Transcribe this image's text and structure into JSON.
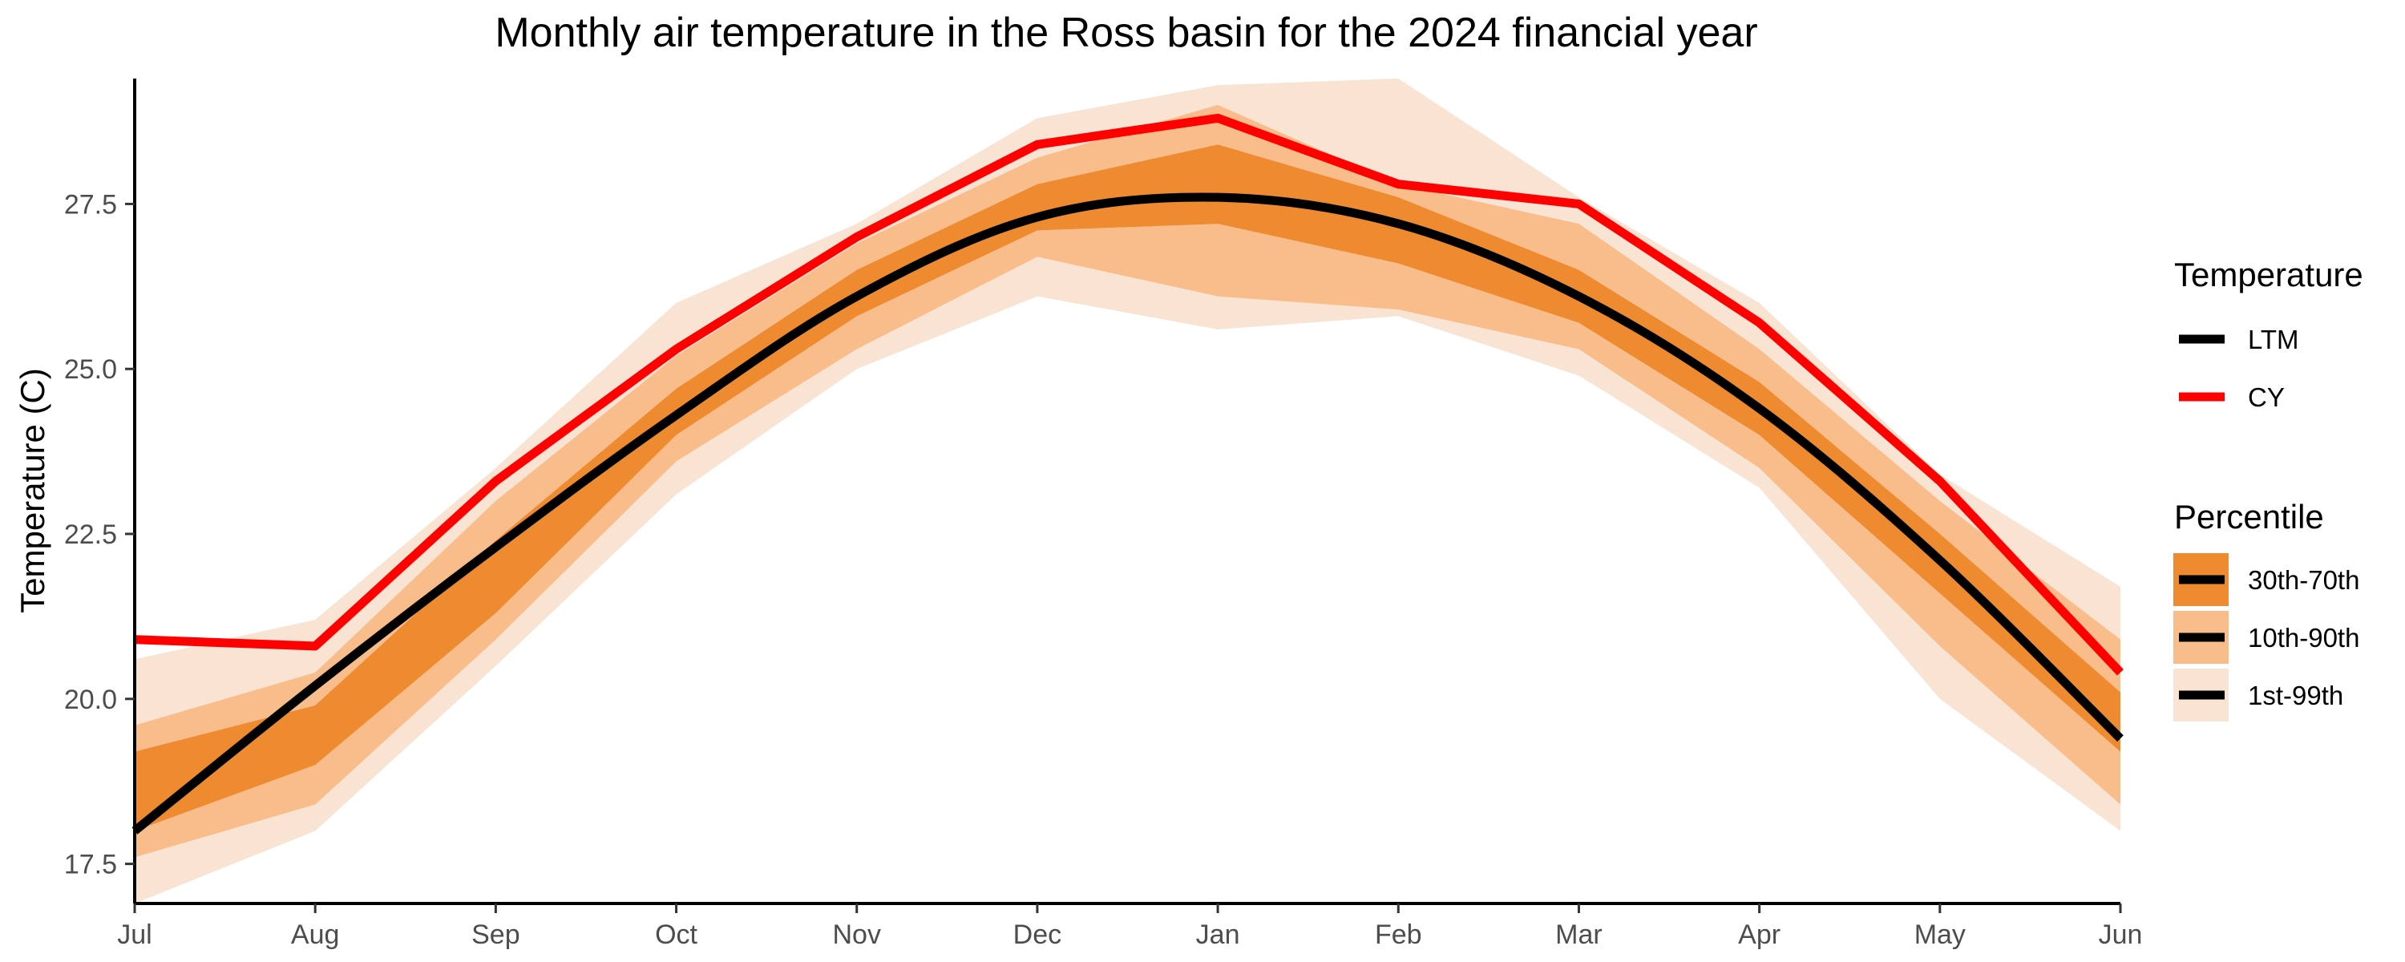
{
  "chart_data": {
    "type": "area",
    "title": "Monthly air temperature in the Ross basin for the 2024 financial year",
    "xlabel": "",
    "ylabel": "Temperature (C)",
    "categories": [
      "Jul",
      "Aug",
      "Sep",
      "Oct",
      "Nov",
      "Dec",
      "Jan",
      "Feb",
      "Mar",
      "Apr",
      "May",
      "Jun"
    ],
    "ylim": [
      16.9,
      29.4
    ],
    "yticks": [
      17.5,
      20.0,
      22.5,
      25.0,
      27.5
    ],
    "ytick_labels": [
      "17.5",
      "20.0",
      "22.5",
      "25.0",
      "27.5"
    ],
    "grid": false,
    "legend_position": "right",
    "series": [
      {
        "name": "LTM",
        "group": "Temperature",
        "color": "#000000",
        "values": [
          18.0,
          20.2,
          22.3,
          24.3,
          26.1,
          27.3,
          27.6,
          27.2,
          26.1,
          24.4,
          22.1,
          19.4
        ]
      },
      {
        "name": "CY",
        "group": "Temperature",
        "color": "#ff0000",
        "values": [
          20.9,
          20.8,
          23.3,
          25.3,
          27.0,
          28.4,
          28.8,
          27.8,
          27.5,
          25.7,
          23.3,
          20.4
        ]
      }
    ],
    "bands": [
      {
        "name": "1st-99th",
        "group": "Percentile",
        "color": "#f9e3d2",
        "lower": [
          16.9,
          18.0,
          20.5,
          23.1,
          25.0,
          26.1,
          25.6,
          25.8,
          24.9,
          23.2,
          20.0,
          18.0
        ],
        "upper": [
          20.6,
          21.2,
          23.5,
          26.0,
          27.2,
          28.8,
          29.3,
          29.4,
          27.6,
          26.0,
          23.4,
          21.7
        ]
      },
      {
        "name": "10th-90th",
        "group": "Percentile",
        "color": "#f9bd8c",
        "lower": [
          17.6,
          18.4,
          20.9,
          23.6,
          25.3,
          26.7,
          26.1,
          25.9,
          25.3,
          23.5,
          20.8,
          18.4
        ],
        "upper": [
          19.6,
          20.4,
          23.0,
          25.2,
          26.9,
          28.2,
          29.0,
          27.8,
          27.2,
          25.3,
          23.0,
          20.9
        ]
      },
      {
        "name": "30th-70th",
        "group": "Percentile",
        "color": "#ee8a2f",
        "lower": [
          18.0,
          19.0,
          21.3,
          24.0,
          25.8,
          27.1,
          27.2,
          26.6,
          25.7,
          24.0,
          21.6,
          19.2
        ],
        "upper": [
          19.2,
          19.9,
          22.4,
          24.7,
          26.5,
          27.8,
          28.4,
          27.6,
          26.5,
          24.8,
          22.5,
          20.1
        ]
      }
    ],
    "legend": {
      "temperature_title": "Temperature",
      "percentile_title": "Percentile"
    }
  }
}
